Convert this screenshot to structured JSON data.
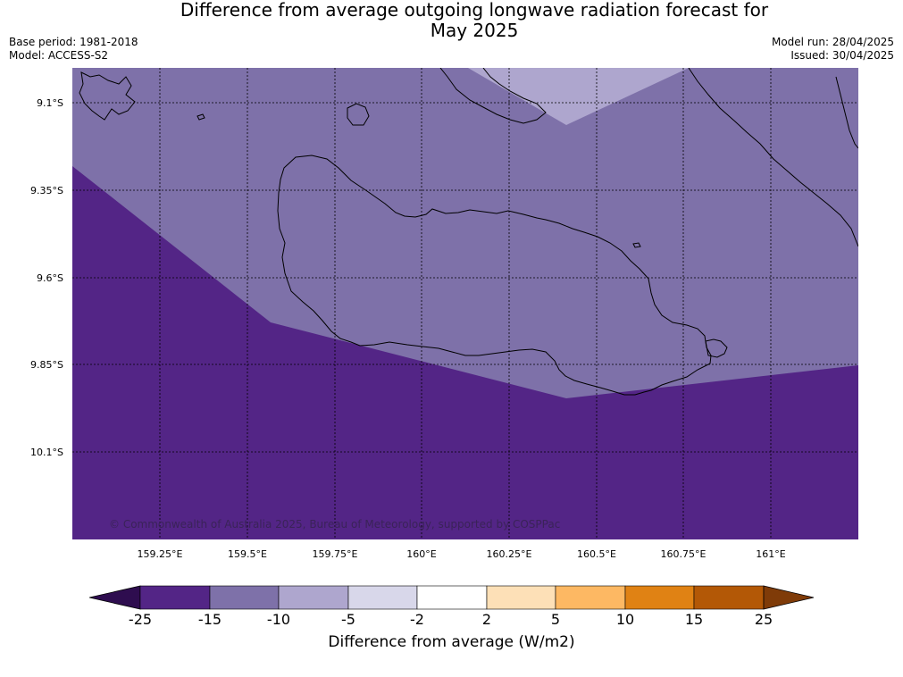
{
  "title": {
    "line1": "Difference from average outgoing longwave radiation forecast for",
    "line2": "May 2025"
  },
  "meta": {
    "base_period": "Base period: 1981-2018",
    "model": "Model: ACCESS-S2",
    "model_run": "Model run: 28/04/2025",
    "issued": "Issued: 30/04/2025"
  },
  "map": {
    "lat_labels": [
      "9.1°S",
      "9.35°S",
      "9.6°S",
      "9.85°S",
      "10.1°S"
    ],
    "lon_labels": [
      "159.25°E",
      "159.5°E",
      "159.75°E",
      "160°E",
      "160.25°E",
      "160.5°E",
      "160.75°E",
      "161°E"
    ],
    "copyright": "© Commonwealth of Australia 2025, Bureau of Meteorology, supported by COSPPac",
    "colors": {
      "class_minus25_to_minus15": "#532586",
      "class_minus15_to_minus10": "#7e71a9",
      "class_minus10_to_minus5": "#aea6ce",
      "coastline": "#000000",
      "gridline": "#000000"
    }
  },
  "colorbar": {
    "label": "Difference from average (W/m2)",
    "ticks": [
      "-25",
      "-15",
      "-10",
      "-5",
      "-2",
      "2",
      "5",
      "10",
      "15",
      "25"
    ],
    "colors": [
      "#2e0d4f",
      "#532586",
      "#7e71a9",
      "#aea6ce",
      "#d8d7ea",
      "#ffffff",
      "#fde0b7",
      "#fdb863",
      "#e08214",
      "#b35806",
      "#7f3b08"
    ]
  }
}
